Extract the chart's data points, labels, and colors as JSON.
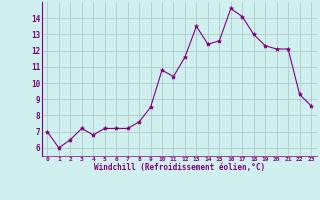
{
  "x": [
    0,
    1,
    2,
    3,
    4,
    5,
    6,
    7,
    8,
    9,
    10,
    11,
    12,
    13,
    14,
    15,
    16,
    17,
    18,
    19,
    20,
    21,
    22,
    23
  ],
  "y": [
    7.0,
    6.0,
    6.5,
    7.2,
    6.8,
    7.2,
    7.2,
    7.2,
    7.6,
    8.5,
    10.8,
    10.4,
    11.6,
    13.5,
    12.4,
    12.6,
    14.6,
    14.1,
    13.0,
    12.3,
    12.1,
    12.1,
    9.3,
    8.6
  ],
  "line_color": "#800080",
  "marker": "*",
  "marker_size": 3,
  "bg_color": "#d0f0f0",
  "grid_color": "#b0c8c8",
  "xlabel": "Windchill (Refroidissement éolien,°C)",
  "xlim": [
    -0.5,
    23.5
  ],
  "ylim": [
    5.5,
    15.0
  ],
  "yticks": [
    6,
    7,
    8,
    9,
    10,
    11,
    12,
    13,
    14
  ],
  "xticks": [
    0,
    1,
    2,
    3,
    4,
    5,
    6,
    7,
    8,
    9,
    10,
    11,
    12,
    13,
    14,
    15,
    16,
    17,
    18,
    19,
    20,
    21,
    22,
    23
  ],
  "xlabel_color": "#800080",
  "tick_color": "#800080",
  "spine_color": "#800080",
  "font_family": "monospace"
}
